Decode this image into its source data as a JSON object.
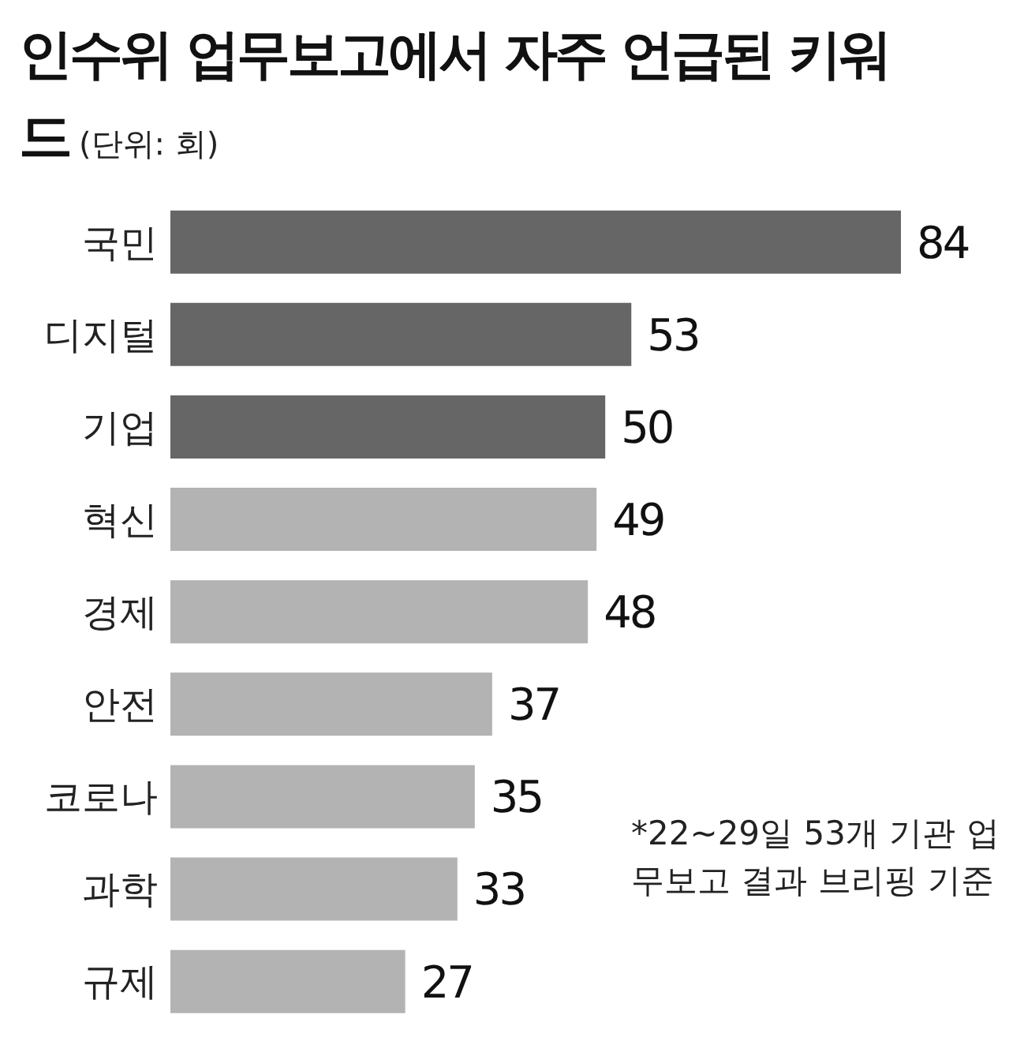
{
  "chart_data": {
    "type": "bar",
    "orientation": "horizontal",
    "title": "인수위 업무보고에서 자주 언급된 키워드",
    "subtitle": "(단위: 회)",
    "categories": [
      "국민",
      "디지털",
      "기업",
      "혁신",
      "경제",
      "안전",
      "코로나",
      "과학",
      "규제"
    ],
    "values": [
      84,
      53,
      50,
      49,
      48,
      37,
      35,
      33,
      27
    ],
    "colors": [
      "#666666",
      "#666666",
      "#666666",
      "#b3b3b3",
      "#b3b3b3",
      "#b3b3b3",
      "#b3b3b3",
      "#b3b3b3",
      "#b3b3b3"
    ],
    "data_labels": true,
    "annotations": [
      "*22~29일 53개 기관 업무보고 결과 브리핑 기준"
    ]
  }
}
